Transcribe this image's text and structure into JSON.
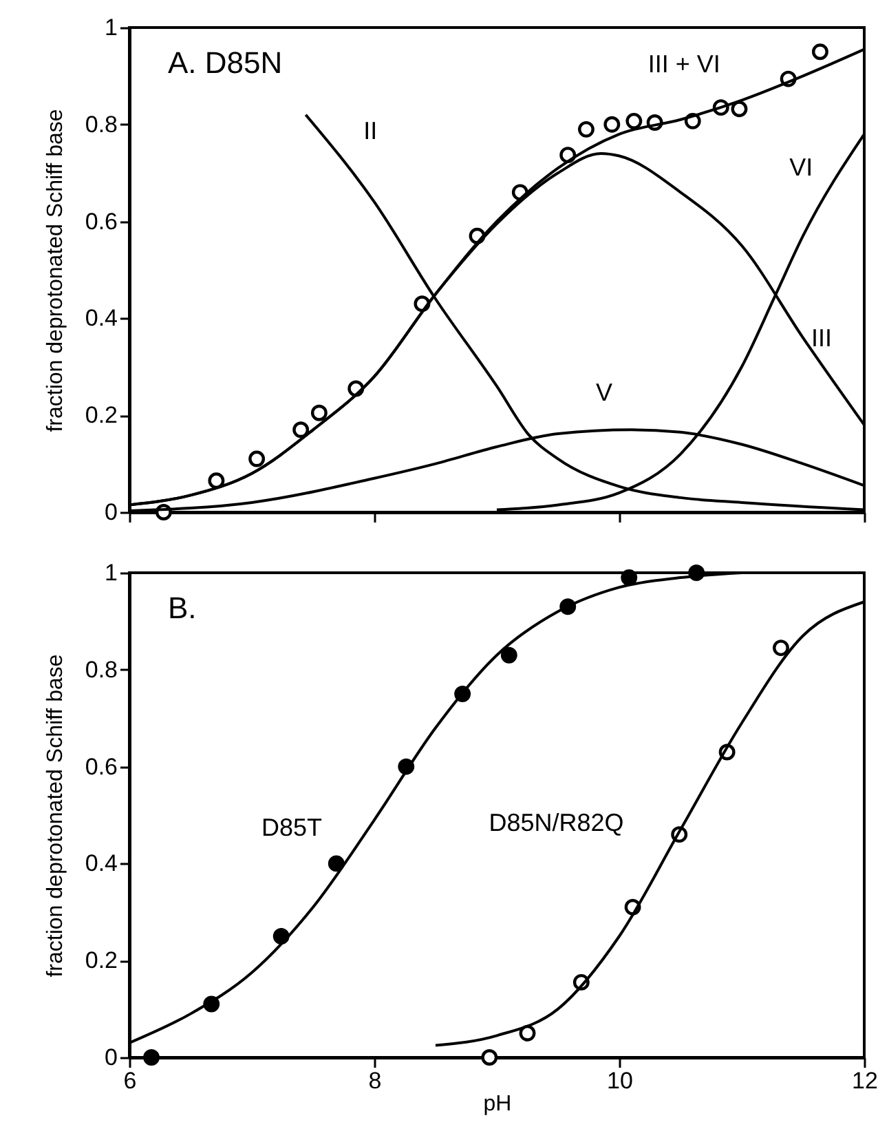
{
  "chart_data": [
    {
      "type": "line",
      "title": "A. D85N",
      "ylabel": "fraction deprotonated Schiff base",
      "xlim": [
        6,
        12
      ],
      "xticks": [
        6,
        8,
        10,
        12
      ],
      "ylim": [
        0,
        1
      ],
      "yticks": [
        0,
        0.2,
        0.4,
        0.6,
        0.8,
        1
      ],
      "tick_labels": "y",
      "grid": false,
      "legend": false,
      "series": [
        {
          "type": "scatter",
          "marker": "circle",
          "color": "#000000",
          "x": [
            6.28,
            6.71,
            7.04,
            7.4,
            7.55,
            7.85,
            8.39,
            8.84,
            9.19,
            9.58,
            9.73,
            9.94,
            10.12,
            10.29,
            10.6,
            10.83,
            10.98,
            11.38,
            11.64
          ],
          "values": [
            0,
            0.065,
            0.11,
            0.17,
            0.205,
            0.255,
            0.43,
            0.57,
            0.66,
            0.737,
            0.79,
            0.8,
            0.807,
            0.804,
            0.807,
            0.835,
            0.832,
            0.894,
            0.95
          ]
        },
        {
          "name": "III + VI",
          "color": "#000000",
          "x": [
            6,
            6.5,
            7,
            7.5,
            8,
            8.5,
            9,
            9.5,
            10,
            10.5,
            11,
            11.5,
            12
          ],
          "values": [
            0.015,
            0.035,
            0.08,
            0.17,
            0.28,
            0.45,
            0.6,
            0.71,
            0.78,
            0.81,
            0.85,
            0.9,
            0.955
          ]
        },
        {
          "name": "III",
          "color": "#000000",
          "x": [
            6,
            6.5,
            7,
            7.5,
            8,
            8.5,
            9,
            9.5,
            9.85,
            10,
            10.5,
            11,
            11.5,
            12
          ],
          "values": [
            0.015,
            0.035,
            0.08,
            0.17,
            0.28,
            0.45,
            0.595,
            0.7,
            0.74,
            0.735,
            0.66,
            0.55,
            0.36,
            0.18
          ]
        },
        {
          "name": "II",
          "color": "#000000",
          "x": [
            7.44,
            8,
            8.5,
            9,
            9.26,
            9.5,
            10,
            10.5,
            11,
            12
          ],
          "values": [
            0.82,
            0.64,
            0.44,
            0.26,
            0.16,
            0.11,
            0.053,
            0.03,
            0.02,
            0.005
          ]
        },
        {
          "name": "V",
          "color": "#000000",
          "x": [
            6,
            7,
            8,
            8.5,
            9,
            9.5,
            10.1,
            10.5,
            11,
            11.5,
            12
          ],
          "values": [
            0.003,
            0.02,
            0.07,
            0.1,
            0.135,
            0.162,
            0.17,
            0.165,
            0.14,
            0.1,
            0.055
          ]
        },
        {
          "name": "VI",
          "color": "#000000",
          "x": [
            9,
            9.5,
            10,
            10.5,
            11,
            11.27,
            11.5,
            12
          ],
          "values": [
            0.005,
            0.015,
            0.04,
            0.12,
            0.3,
            0.445,
            0.57,
            0.78
          ]
        }
      ]
    },
    {
      "type": "line",
      "title": "B.",
      "xlabel": "pH",
      "ylabel": "fraction deprotonated Schiff base",
      "xlim": [
        6,
        12
      ],
      "xticks": [
        6,
        8,
        10,
        12
      ],
      "ylim": [
        0,
        1
      ],
      "yticks": [
        0,
        0.2,
        0.4,
        0.6,
        0.8,
        1
      ],
      "grid": false,
      "legend": false,
      "series": [
        {
          "type": "scatter",
          "marker": "circle",
          "color": "#000000",
          "x": [
            6.18,
            6.67,
            7.24,
            7.69,
            8.26,
            8.72,
            9.1,
            9.58,
            10.08,
            10.63
          ],
          "values": [
            0,
            0.11,
            0.25,
            0.4,
            0.6,
            0.75,
            0.83,
            0.93,
            0.99,
            1
          ]
        },
        {
          "type": "scatter",
          "marker": "circle",
          "color": "#000000",
          "x": [
            8.94,
            9.25,
            9.69,
            10.11,
            10.49,
            10.88,
            11.32
          ],
          "values": [
            0,
            0.05,
            0.155,
            0.31,
            0.46,
            0.63,
            0.845
          ]
        },
        {
          "name": "D85T",
          "color": "#000000",
          "x": [
            6,
            6.5,
            7,
            7.5,
            8,
            8.5,
            9,
            9.5,
            10,
            10.5,
            11
          ],
          "values": [
            0.03,
            0.09,
            0.175,
            0.31,
            0.49,
            0.68,
            0.83,
            0.92,
            0.97,
            0.99,
            1
          ]
        },
        {
          "name": "D85N/R82Q",
          "color": "#000000",
          "x": [
            8.5,
            9,
            9.5,
            10,
            10.5,
            11,
            11.5,
            12
          ],
          "values": [
            0.025,
            0.045,
            0.1,
            0.25,
            0.47,
            0.69,
            0.87,
            0.94
          ]
        }
      ]
    }
  ]
}
